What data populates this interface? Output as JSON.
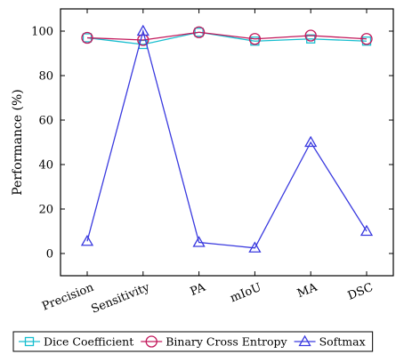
{
  "chart_data": {
    "type": "line",
    "title": "",
    "xlabel": "",
    "ylabel": "Performance (%)",
    "categories": [
      "Precision",
      "Sensitivity",
      "PA",
      "mIoU",
      "MA",
      "DSC"
    ],
    "ylim": [
      -10,
      110
    ],
    "yticks": [
      0,
      20,
      40,
      60,
      80,
      100
    ],
    "grid": false,
    "legend_position": "bottom",
    "series": [
      {
        "name": "Dice Coefficient",
        "values": [
          97,
          94,
          99.5,
          95.5,
          96.5,
          95.5
        ],
        "color": "#17becf",
        "marker": "square"
      },
      {
        "name": "Binary Cross Entropy",
        "values": [
          97,
          96,
          99.5,
          96.5,
          98,
          96.5
        ],
        "color": "#c2185b",
        "marker": "circle"
      },
      {
        "name": "Softmax",
        "values": [
          5.5,
          100,
          5,
          2.5,
          50,
          10
        ],
        "color": "#3a3adf",
        "marker": "triangle"
      }
    ]
  }
}
